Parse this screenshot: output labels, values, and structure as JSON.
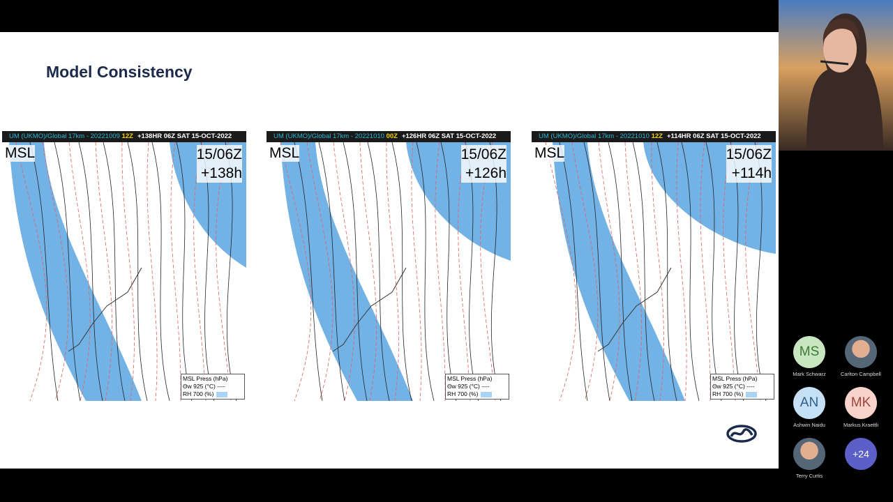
{
  "slide": {
    "title": "Model Consistency",
    "maps": [
      {
        "run": "UM (UKMO)/Global 17km - 20221009",
        "run_hour": "12Z",
        "valid": "+138HR 06Z SAT 15-OCT-2022",
        "field": "MSL",
        "time": "15/06Z",
        "lead": "+138h",
        "legend": [
          "MSL Press (hPa)",
          "Θw 925 (°C) ----",
          "RH 700 (%)"
        ]
      },
      {
        "run": "UM (UKMO)/Global 17km - 20221010",
        "run_hour": "00Z",
        "valid": "+126HR 06Z SAT 15-OCT-2022",
        "field": "MSL",
        "time": "15/06Z",
        "lead": "+126h",
        "legend": [
          "MSL Press (hPa)",
          "Θw 925 (°C) ----",
          "RH 700 (%)"
        ]
      },
      {
        "run": "UM (UKMO)/Global 17km - 20221010",
        "run_hour": "12Z",
        "valid": "+114HR 06Z SAT 15-OCT-2022",
        "field": "MSL",
        "time": "15/06Z",
        "lead": "+114h",
        "legend": [
          "MSL Press (hPa)",
          "Θw 925 (°C) ----",
          "RH 700 (%)"
        ]
      }
    ]
  },
  "participants": {
    "tiles": [
      {
        "initials": "MS",
        "name": "Mark Schwarz"
      },
      {
        "name": "Carlton Campbell"
      },
      {
        "initials": "AN",
        "name": "Ashwin Naidu"
      },
      {
        "initials": "MK",
        "name": "Markus Kraettli"
      },
      {
        "name": "Terry Curtis"
      }
    ],
    "overflow": "+24"
  }
}
